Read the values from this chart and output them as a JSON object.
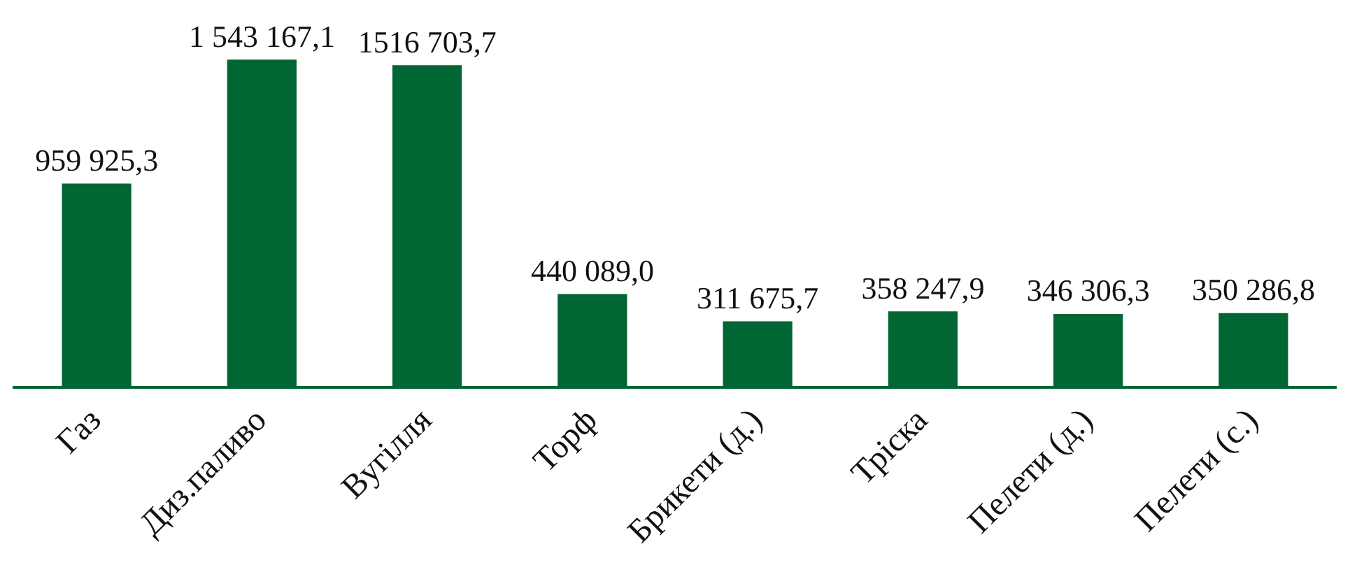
{
  "chart_data": {
    "type": "bar",
    "categories": [
      "Газ",
      "Диз.паливо",
      "Вугілля",
      "Торф",
      "Брикети (д.)",
      "Тріска",
      "Пелети (д.)",
      "Пелети (с.)"
    ],
    "values": [
      959925.3,
      1543167.1,
      1516703.7,
      440089.0,
      311675.7,
      358247.9,
      346306.3,
      350286.8
    ],
    "value_labels": [
      "959 925,3",
      "1 543 167,1",
      "1516 703,7",
      "440 089,0",
      "311 675,7",
      "358 247,9",
      "346 306,3",
      "350 286,8"
    ],
    "color": "#006633",
    "grid": false,
    "legend": false
  }
}
